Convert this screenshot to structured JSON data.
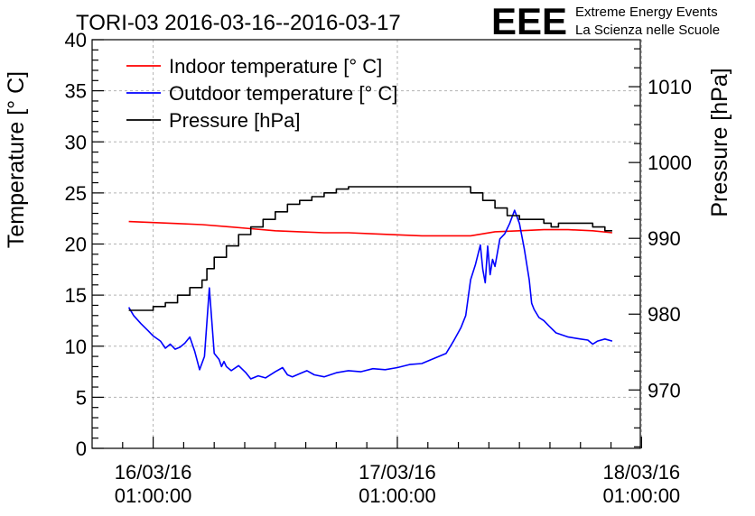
{
  "chart_data": {
    "type": "line",
    "title": "TORI-03 2016-03-16--2016-03-17",
    "logo": {
      "mark": "EEE",
      "line1": "Extreme Energy Events",
      "line2": "La Scienza nelle Scuole",
      "color": "#1a1aff"
    },
    "ylabel": "Temperature [° C]",
    "y2label": "Pressure [hPa]",
    "ylim": [
      0,
      40
    ],
    "y2lim": [
      962.3,
      1016.2
    ],
    "xlim": [
      -0.25,
      1.995
    ],
    "xticks": [
      {
        "t": 0,
        "line1": "16/03/16",
        "line2": "01:00:00"
      },
      {
        "t": 1,
        "line1": "17/03/16",
        "line2": "01:00:00"
      },
      {
        "t": 2,
        "line1": "18/03/16",
        "line2": "01:00:00"
      }
    ],
    "yticks": [
      0,
      5,
      10,
      15,
      20,
      25,
      30,
      35,
      40
    ],
    "y2ticks": [
      970,
      980,
      990,
      1000,
      1010
    ],
    "legend": {
      "position": "top-left"
    },
    "series": [
      {
        "name": "Indoor temperature [° C]",
        "axis": "left",
        "color": "#ff0000",
        "t": [
          -0.1,
          0.0,
          0.1,
          0.2,
          0.3,
          0.4,
          0.5,
          0.6,
          0.7,
          0.8,
          0.9,
          1.0,
          1.1,
          1.2,
          1.3,
          1.35,
          1.4,
          1.5,
          1.6,
          1.7,
          1.8,
          1.88
        ],
        "values": [
          22.2,
          22.1,
          22.0,
          21.9,
          21.7,
          21.5,
          21.3,
          21.2,
          21.1,
          21.1,
          21.0,
          20.9,
          20.8,
          20.8,
          20.8,
          21.0,
          21.2,
          21.3,
          21.4,
          21.4,
          21.3,
          21.1
        ]
      },
      {
        "name": "Outdoor temperature [° C]",
        "axis": "left",
        "color": "#0000ff",
        "t": [
          -0.1,
          -0.08,
          -0.05,
          -0.02,
          0.0,
          0.03,
          0.05,
          0.07,
          0.09,
          0.11,
          0.13,
          0.15,
          0.17,
          0.19,
          0.21,
          0.23,
          0.25,
          0.27,
          0.28,
          0.29,
          0.3,
          0.32,
          0.35,
          0.38,
          0.4,
          0.43,
          0.46,
          0.5,
          0.53,
          0.55,
          0.57,
          0.6,
          0.63,
          0.66,
          0.7,
          0.75,
          0.8,
          0.85,
          0.9,
          0.95,
          1.0,
          1.05,
          1.1,
          1.13,
          1.16,
          1.2,
          1.23,
          1.26,
          1.28,
          1.3,
          1.32,
          1.34,
          1.35,
          1.36,
          1.37,
          1.38,
          1.39,
          1.4,
          1.42,
          1.44,
          1.46,
          1.48,
          1.5,
          1.52,
          1.54,
          1.55,
          1.56,
          1.58,
          1.6,
          1.62,
          1.65,
          1.7,
          1.75,
          1.78,
          1.8,
          1.82,
          1.85,
          1.88
        ],
        "values": [
          13.8,
          13.0,
          12.2,
          11.5,
          11.0,
          10.5,
          9.8,
          10.2,
          9.7,
          9.9,
          10.3,
          10.9,
          9.5,
          7.7,
          9.0,
          15.7,
          9.3,
          8.7,
          8.0,
          8.5,
          8.0,
          7.6,
          8.1,
          7.4,
          6.8,
          7.1,
          6.9,
          7.5,
          7.9,
          7.2,
          7.0,
          7.3,
          7.6,
          7.2,
          7.0,
          7.4,
          7.6,
          7.5,
          7.8,
          7.7,
          7.9,
          8.2,
          8.3,
          8.6,
          8.9,
          9.3,
          10.5,
          11.8,
          13.0,
          16.5,
          18.0,
          19.9,
          17.5,
          16.2,
          19.8,
          17.0,
          18.5,
          17.8,
          20.5,
          21.0,
          22.0,
          23.3,
          22.0,
          19.5,
          16.5,
          14.2,
          13.6,
          12.8,
          12.5,
          12.0,
          11.3,
          10.9,
          10.7,
          10.6,
          10.2,
          10.5,
          10.7,
          10.5
        ]
      },
      {
        "name": "Pressure [hPa]",
        "axis": "right",
        "color": "#000000",
        "t": [
          -0.1,
          -0.02,
          0.0,
          0.05,
          0.1,
          0.15,
          0.2,
          0.22,
          0.25,
          0.3,
          0.35,
          0.4,
          0.45,
          0.5,
          0.55,
          0.6,
          0.65,
          0.7,
          0.75,
          0.8,
          1.0,
          1.2,
          1.3,
          1.35,
          1.4,
          1.45,
          1.5,
          1.6,
          1.63,
          1.66,
          1.7,
          1.8,
          1.85,
          1.88
        ],
        "values": [
          980.5,
          980.5,
          981.0,
          981.5,
          982.5,
          983.5,
          984.5,
          986.0,
          987.5,
          989.0,
          990.5,
          991.5,
          992.5,
          993.5,
          994.5,
          995.0,
          995.5,
          996.0,
          996.5,
          996.8,
          996.8,
          996.8,
          996.0,
          995.0,
          994.0,
          993.0,
          992.5,
          992.0,
          991.5,
          992.0,
          992.0,
          991.5,
          991.0,
          991.0
        ]
      }
    ]
  }
}
